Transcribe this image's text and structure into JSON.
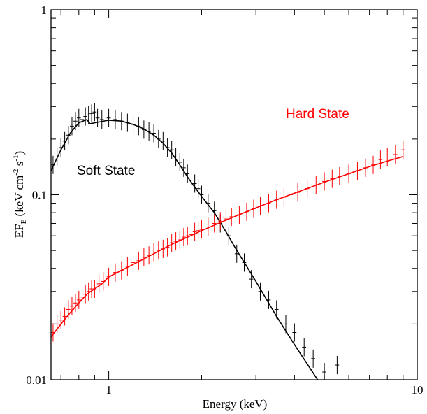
{
  "chart_data": {
    "type": "scatter",
    "xlabel": "Energy (keV)",
    "ylabel": {
      "base": "EF",
      "sub": "E",
      "units": " (keV cm",
      "exp1": "-2",
      "mid": " s",
      "exp2": "-1",
      "close": ")"
    },
    "x_scale": "log",
    "y_scale": "log",
    "xlim": [
      0.65,
      10
    ],
    "ylim": [
      0.01,
      1
    ],
    "x_ticks": [
      {
        "value": 1,
        "label": "1"
      },
      {
        "value": 10,
        "label": "10"
      }
    ],
    "y_ticks": [
      {
        "value": 0.01,
        "label": "0.01"
      },
      {
        "value": 0.1,
        "label": "0.1"
      },
      {
        "value": 1,
        "label": "1"
      }
    ],
    "grid": false,
    "annotations": [
      {
        "text": "Soft State",
        "color": "#000000"
      },
      {
        "text": "Hard State",
        "color": "#ff0000"
      }
    ],
    "series": [
      {
        "key": "soft",
        "color": "#000000",
        "model": [
          [
            0.65,
            0.135
          ],
          [
            0.7,
            0.175
          ],
          [
            0.75,
            0.215
          ],
          [
            0.8,
            0.245
          ],
          [
            0.85,
            0.255
          ],
          [
            0.87,
            0.242
          ],
          [
            0.9,
            0.245
          ],
          [
            1.0,
            0.253
          ],
          [
            1.1,
            0.25
          ],
          [
            1.2,
            0.24
          ],
          [
            1.3,
            0.227
          ],
          [
            1.4,
            0.21
          ],
          [
            1.5,
            0.19
          ],
          [
            1.6,
            0.168
          ],
          [
            1.7,
            0.145
          ],
          [
            1.8,
            0.125
          ],
          [
            1.9,
            0.11
          ],
          [
            2.0,
            0.098
          ],
          [
            2.2,
            0.08
          ],
          [
            2.4,
            0.063
          ],
          [
            2.6,
            0.05
          ],
          [
            2.8,
            0.041
          ],
          [
            3.0,
            0.034
          ],
          [
            3.5,
            0.022
          ],
          [
            4.0,
            0.0155
          ],
          [
            4.5,
            0.0115
          ],
          [
            5.0,
            0.0088
          ]
        ],
        "data": [
          [
            0.66,
            0.145
          ],
          [
            0.68,
            0.16
          ],
          [
            0.7,
            0.18
          ],
          [
            0.72,
            0.195
          ],
          [
            0.74,
            0.21
          ],
          [
            0.76,
            0.235
          ],
          [
            0.78,
            0.25
          ],
          [
            0.8,
            0.26
          ],
          [
            0.82,
            0.255
          ],
          [
            0.84,
            0.265
          ],
          [
            0.86,
            0.27
          ],
          [
            0.88,
            0.275
          ],
          [
            0.9,
            0.28
          ],
          [
            0.92,
            0.26
          ],
          [
            0.95,
            0.255
          ],
          [
            1.0,
            0.26
          ],
          [
            1.05,
            0.255
          ],
          [
            1.1,
            0.25
          ],
          [
            1.15,
            0.245
          ],
          [
            1.2,
            0.24
          ],
          [
            1.25,
            0.235
          ],
          [
            1.3,
            0.225
          ],
          [
            1.35,
            0.22
          ],
          [
            1.4,
            0.215
          ],
          [
            1.45,
            0.2
          ],
          [
            1.5,
            0.195
          ],
          [
            1.55,
            0.18
          ],
          [
            1.6,
            0.175
          ],
          [
            1.65,
            0.16
          ],
          [
            1.7,
            0.15
          ],
          [
            1.75,
            0.14
          ],
          [
            1.8,
            0.13
          ],
          [
            1.85,
            0.12
          ],
          [
            1.9,
            0.115
          ],
          [
            1.95,
            0.108
          ],
          [
            2.0,
            0.1
          ],
          [
            2.1,
            0.09
          ],
          [
            2.2,
            0.082
          ],
          [
            2.3,
            0.07
          ],
          [
            2.45,
            0.06
          ],
          [
            2.6,
            0.048
          ],
          [
            2.75,
            0.043
          ],
          [
            2.9,
            0.035
          ],
          [
            3.1,
            0.03
          ],
          [
            3.3,
            0.027
          ],
          [
            3.5,
            0.024
          ],
          [
            3.75,
            0.02
          ],
          [
            4.0,
            0.018
          ],
          [
            4.3,
            0.015
          ],
          [
            4.6,
            0.013
          ],
          [
            5.0,
            0.011
          ],
          [
            5.5,
            0.012
          ]
        ]
      },
      {
        "key": "hard",
        "color": "#ff0000",
        "model": [
          [
            0.65,
            0.017
          ],
          [
            0.7,
            0.02
          ],
          [
            0.75,
            0.023
          ],
          [
            0.8,
            0.026
          ],
          [
            0.85,
            0.029
          ],
          [
            0.9,
            0.031
          ],
          [
            0.95,
            0.033
          ],
          [
            1.0,
            0.036
          ],
          [
            1.2,
            0.042
          ],
          [
            1.4,
            0.048
          ],
          [
            1.6,
            0.054
          ],
          [
            1.8,
            0.059
          ],
          [
            2.0,
            0.064
          ],
          [
            2.5,
            0.075
          ],
          [
            3.0,
            0.085
          ],
          [
            3.5,
            0.094
          ],
          [
            4.0,
            0.102
          ],
          [
            5.0,
            0.117
          ],
          [
            6.0,
            0.13
          ],
          [
            7.0,
            0.142
          ],
          [
            8.0,
            0.152
          ],
          [
            9.0,
            0.161
          ]
        ],
        "data": [
          [
            0.66,
            0.018
          ],
          [
            0.68,
            0.02
          ],
          [
            0.7,
            0.021
          ],
          [
            0.72,
            0.022
          ],
          [
            0.74,
            0.024
          ],
          [
            0.76,
            0.025
          ],
          [
            0.78,
            0.026
          ],
          [
            0.8,
            0.027
          ],
          [
            0.82,
            0.028
          ],
          [
            0.84,
            0.029
          ],
          [
            0.86,
            0.03
          ],
          [
            0.88,
            0.031
          ],
          [
            0.9,
            0.031
          ],
          [
            0.93,
            0.033
          ],
          [
            0.96,
            0.034
          ],
          [
            1.0,
            0.036
          ],
          [
            1.05,
            0.038
          ],
          [
            1.1,
            0.039
          ],
          [
            1.15,
            0.041
          ],
          [
            1.2,
            0.043
          ],
          [
            1.25,
            0.044
          ],
          [
            1.3,
            0.046
          ],
          [
            1.35,
            0.047
          ],
          [
            1.4,
            0.049
          ],
          [
            1.45,
            0.05
          ],
          [
            1.5,
            0.051
          ],
          [
            1.55,
            0.052
          ],
          [
            1.6,
            0.055
          ],
          [
            1.65,
            0.056
          ],
          [
            1.7,
            0.057
          ],
          [
            1.75,
            0.059
          ],
          [
            1.8,
            0.06
          ],
          [
            1.85,
            0.061
          ],
          [
            1.9,
            0.063
          ],
          [
            1.95,
            0.064
          ],
          [
            2.0,
            0.065
          ],
          [
            2.1,
            0.067
          ],
          [
            2.2,
            0.07
          ],
          [
            2.3,
            0.072
          ],
          [
            2.4,
            0.074
          ],
          [
            2.5,
            0.076
          ],
          [
            2.65,
            0.078
          ],
          [
            2.8,
            0.081
          ],
          [
            2.95,
            0.084
          ],
          [
            3.1,
            0.087
          ],
          [
            3.3,
            0.09
          ],
          [
            3.5,
            0.094
          ],
          [
            3.7,
            0.097
          ],
          [
            3.9,
            0.1
          ],
          [
            4.1,
            0.103
          ],
          [
            4.4,
            0.108
          ],
          [
            4.7,
            0.113
          ],
          [
            5.0,
            0.118
          ],
          [
            5.3,
            0.122
          ],
          [
            5.6,
            0.126
          ],
          [
            6.0,
            0.13
          ],
          [
            6.4,
            0.135
          ],
          [
            6.8,
            0.14
          ],
          [
            7.2,
            0.145
          ],
          [
            7.6,
            0.155
          ],
          [
            8.0,
            0.16
          ],
          [
            8.5,
            0.165
          ],
          [
            9.0,
            0.175
          ]
        ]
      }
    ]
  }
}
